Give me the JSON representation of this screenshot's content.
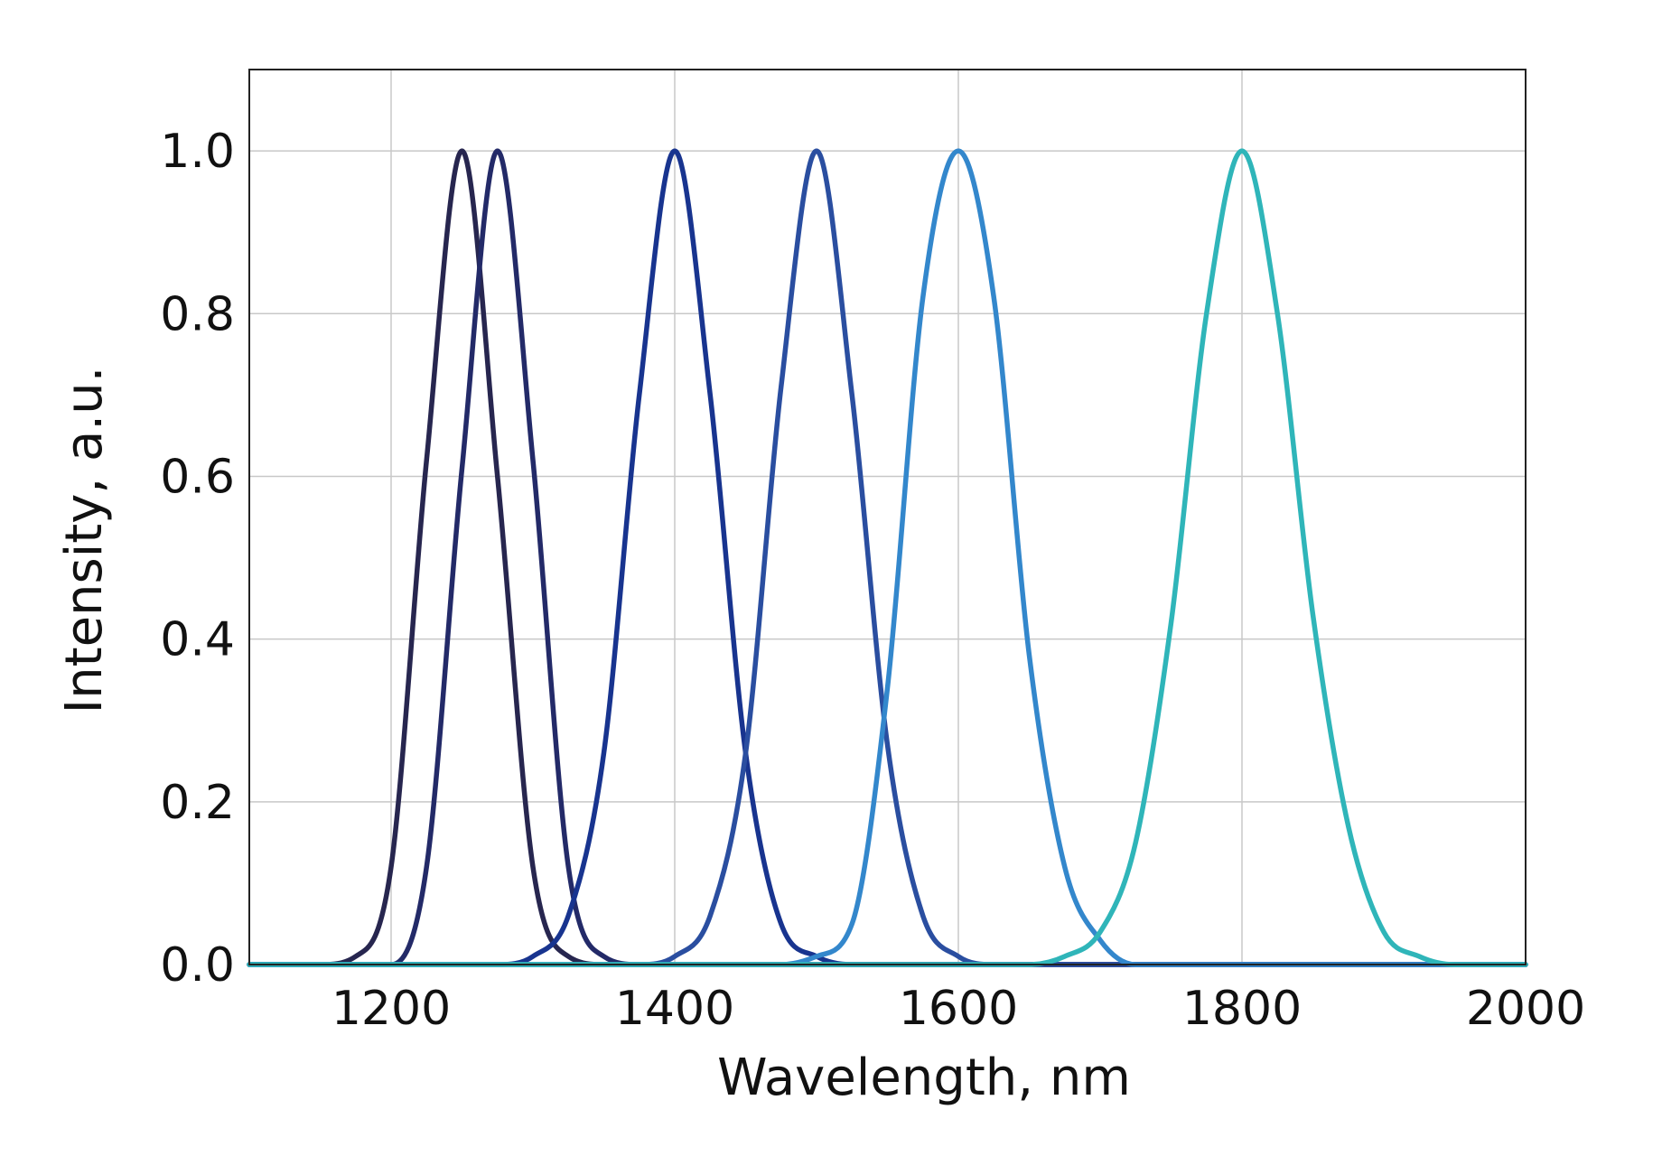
{
  "chart_data": {
    "type": "line",
    "title": "",
    "xlabel": "Wavelength, nm",
    "ylabel": "Intensity, a.u.",
    "xlim": [
      1100,
      2000
    ],
    "ylim": [
      0,
      1.1
    ],
    "xticks": [
      1200,
      1400,
      1600,
      1800,
      2000
    ],
    "xtick_labels": [
      "1200",
      "1400",
      "1600",
      "1800",
      "2000"
    ],
    "yticks": [
      0,
      0.2,
      0.4,
      0.6,
      0.8,
      1.0
    ],
    "ytick_labels": [
      "0.0",
      "0.2",
      "0.4",
      "0.6",
      "0.8",
      "1.0"
    ],
    "grid": true,
    "legend": "none",
    "x": [
      1100,
      1150,
      1175,
      1200,
      1225,
      1250,
      1275,
      1300,
      1325,
      1350,
      1375,
      1400,
      1425,
      1450,
      1475,
      1500,
      1525,
      1550,
      1575,
      1600,
      1625,
      1650,
      1675,
      1700,
      1725,
      1750,
      1775,
      1800,
      1825,
      1850,
      1875,
      1900,
      1925,
      1950,
      2000
    ],
    "series": [
      {
        "color": "#27264f",
        "values": [
          0,
          0,
          0.01,
          0.12,
          0.62,
          1.0,
          0.6,
          0.12,
          0.01,
          0,
          0,
          0,
          0,
          0,
          0,
          0,
          0,
          0,
          0,
          0,
          0,
          0,
          0,
          0,
          0,
          0,
          0,
          0,
          0,
          0,
          0,
          0,
          0,
          0,
          0
        ]
      },
      {
        "color": "#232a68",
        "values": [
          0,
          0,
          0,
          0,
          0.12,
          0.61,
          1.0,
          0.62,
          0.12,
          0.01,
          0,
          0,
          0,
          0,
          0,
          0,
          0,
          0,
          0,
          0,
          0,
          0,
          0,
          0,
          0,
          0,
          0,
          0,
          0,
          0,
          0,
          0,
          0,
          0,
          0
        ]
      },
      {
        "color": "#18348f",
        "values": [
          0,
          0,
          0,
          0,
          0,
          0,
          0,
          0.01,
          0.06,
          0.26,
          0.7,
          1.0,
          0.7,
          0.26,
          0.05,
          0.01,
          0,
          0,
          0,
          0,
          0,
          0,
          0,
          0,
          0,
          0,
          0,
          0,
          0,
          0,
          0,
          0,
          0,
          0,
          0
        ]
      },
      {
        "color": "#2a4ea0",
        "values": [
          0,
          0,
          0,
          0,
          0,
          0,
          0,
          0,
          0,
          0,
          0,
          0.01,
          0.06,
          0.26,
          0.71,
          1.0,
          0.7,
          0.27,
          0.06,
          0.01,
          0,
          0,
          0,
          0,
          0,
          0,
          0,
          0,
          0,
          0,
          0,
          0,
          0,
          0,
          0
        ]
      },
      {
        "color": "#3387cc",
        "values": [
          0,
          0,
          0,
          0,
          0,
          0,
          0,
          0,
          0,
          0,
          0,
          0,
          0,
          0,
          0,
          0.01,
          0.05,
          0.34,
          0.82,
          1.0,
          0.82,
          0.38,
          0.12,
          0.03,
          0,
          0,
          0,
          0,
          0,
          0,
          0,
          0,
          0,
          0,
          0
        ]
      },
      {
        "color": "#2fb5b9",
        "values": [
          0,
          0,
          0,
          0,
          0,
          0,
          0,
          0,
          0,
          0,
          0,
          0,
          0,
          0,
          0,
          0,
          0,
          0,
          0,
          0,
          0,
          0,
          0.01,
          0.04,
          0.15,
          0.42,
          0.8,
          1.0,
          0.8,
          0.43,
          0.17,
          0.04,
          0.01,
          0,
          0
        ]
      }
    ]
  }
}
